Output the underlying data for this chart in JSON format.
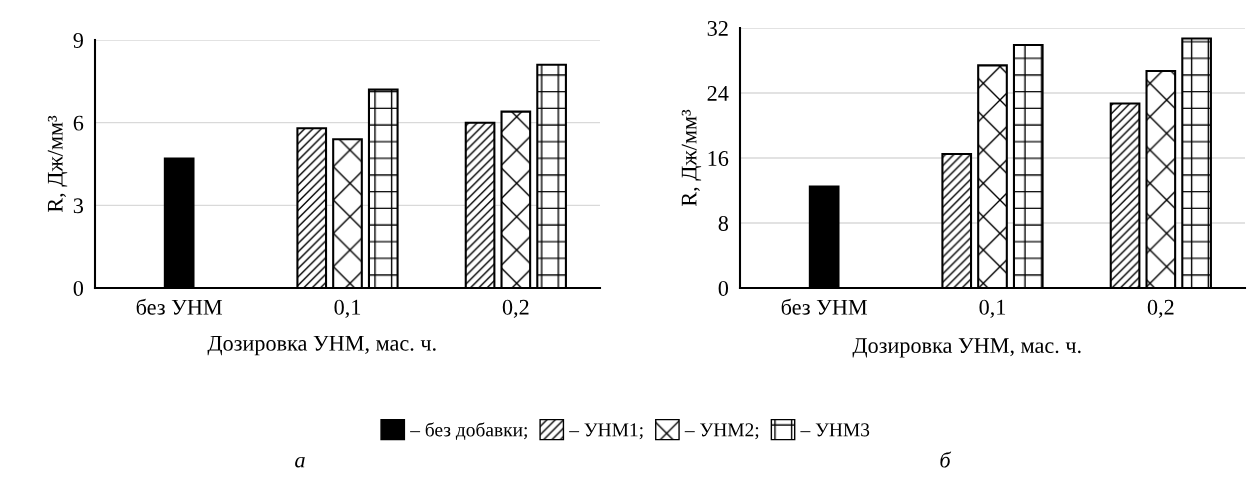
{
  "chart_data": [
    {
      "type": "bar",
      "categories": [
        "без УНМ",
        "0,1",
        "0,2"
      ],
      "xlabel": "Дозировка УНМ, мас. ч.",
      "ylabel": "R, Дж/мм³",
      "ylim": [
        0,
        9
      ],
      "yticks": [
        0,
        3,
        6,
        9
      ],
      "grid": "y",
      "legend": "bottom",
      "annotations": [
        "а"
      ],
      "series": [
        {
          "name": "– без добавки;",
          "color": "#000000",
          "values": [
            4.7,
            null,
            null
          ]
        },
        {
          "name": "– УНМ1;",
          "color": "#000000",
          "values": [
            null,
            5.8,
            6.0
          ]
        },
        {
          "name": "– УНМ2;",
          "color": "#000000",
          "values": [
            null,
            5.4,
            6.4
          ]
        },
        {
          "name": "– УНМ3",
          "color": "#000000",
          "values": [
            null,
            7.2,
            8.1
          ]
        }
      ]
    },
    {
      "type": "bar",
      "categories": [
        "без УНМ",
        "0,1",
        "0,2"
      ],
      "xlabel": "Дозировка УНМ, мас. ч.",
      "ylabel": "R, Дж/мм³",
      "ylim": [
        0,
        32
      ],
      "yticks": [
        0,
        8,
        16,
        24,
        32
      ],
      "grid": "y",
      "annotations": [
        "б"
      ],
      "series": [
        {
          "color": "#000000",
          "values": [
            12.5,
            null,
            null
          ]
        },
        {
          "color": "#000000",
          "values": [
            null,
            16.5,
            22.7
          ]
        },
        {
          "color": "#000000",
          "values": [
            null,
            27.4,
            26.7
          ]
        },
        {
          "color": "#000000",
          "values": [
            null,
            29.9,
            30.7
          ]
        }
      ]
    }
  ]
}
